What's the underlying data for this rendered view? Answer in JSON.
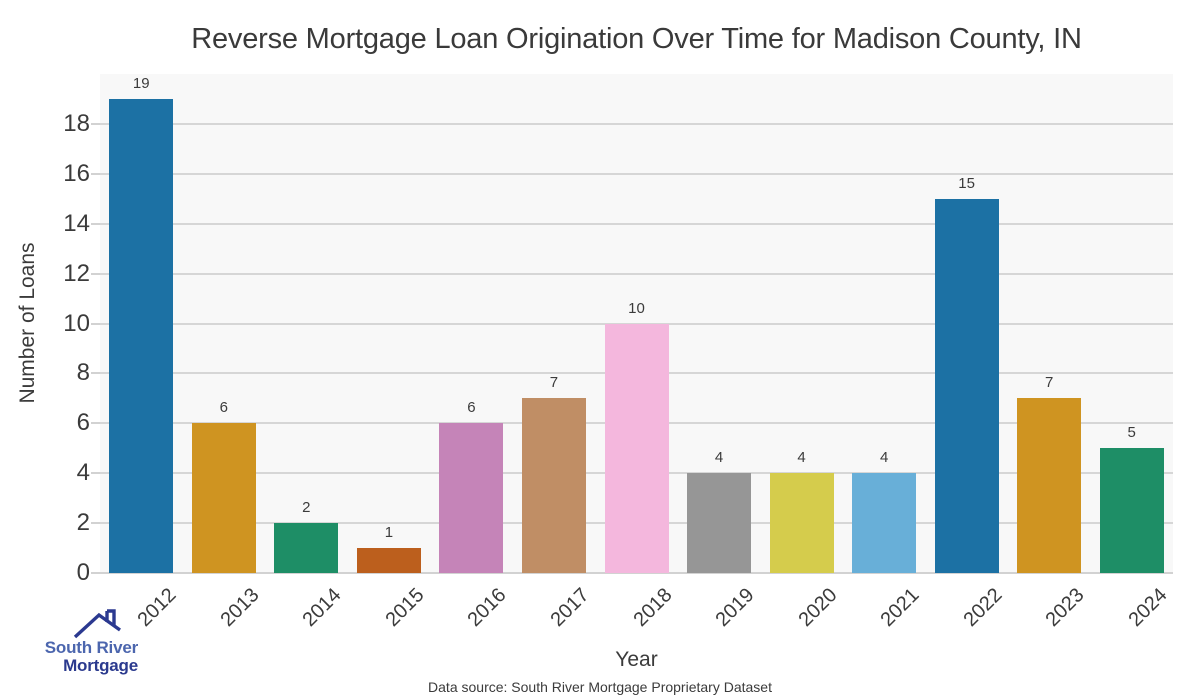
{
  "chart_data": {
    "type": "bar",
    "title": "Reverse Mortgage Loan Origination Over Time for Madison County, IN",
    "xlabel": "Year",
    "ylabel": "Number of Loans",
    "categories": [
      "2012",
      "2013",
      "2014",
      "2015",
      "2016",
      "2017",
      "2018",
      "2019",
      "2020",
      "2021",
      "2022",
      "2023",
      "2024"
    ],
    "values": [
      19,
      6,
      2,
      1,
      6,
      7,
      10,
      4,
      4,
      4,
      15,
      7,
      5
    ],
    "bar_colors": [
      "#1c71a4",
      "#cf9421",
      "#1e8e66",
      "#bc5f1d",
      "#c584b8",
      "#c08e65",
      "#f4b7dd",
      "#969696",
      "#d5cc4c",
      "#68afd8",
      "#1c71a4",
      "#cf9421",
      "#1e8e66"
    ],
    "ylim": [
      0,
      20
    ],
    "yticks": [
      0,
      2,
      4,
      6,
      8,
      10,
      12,
      14,
      16,
      18
    ],
    "grid": "horizontal",
    "legend": "none",
    "colors": {
      "plot_background": "#f8f8f8",
      "figure_background": "#ffffff",
      "gridline": "#d6d6d6",
      "axis_line": "#d2d2d2",
      "text": "#3b3b3b"
    }
  },
  "footer": {
    "data_source": "Data source: South River Mortgage Proprietary Dataset"
  },
  "logo": {
    "line1": "South River",
    "line2": "Mortgage",
    "line1_color": "#4c66ae",
    "line2_color": "#2b3a8e",
    "roof_color": "#2b3990"
  }
}
